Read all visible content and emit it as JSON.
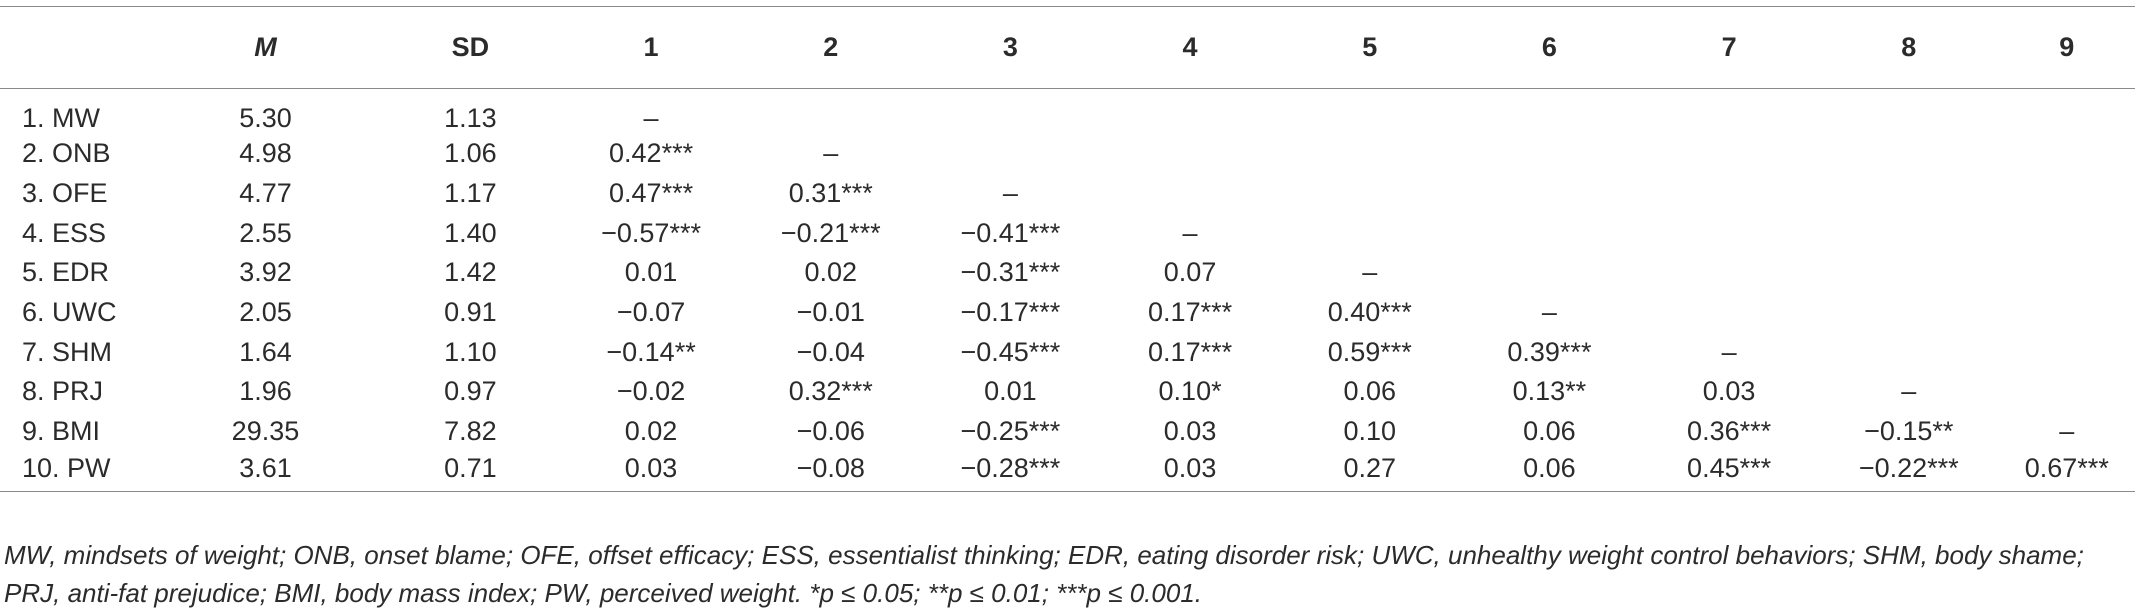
{
  "table": {
    "headers": [
      "",
      "M",
      "SD",
      "1",
      "2",
      "3",
      "4",
      "5",
      "6",
      "7",
      "8",
      "9"
    ],
    "rows": [
      [
        "1. MW",
        "5.30",
        "1.13",
        "–",
        "",
        "",
        "",
        "",
        "",
        "",
        "",
        ""
      ],
      [
        "2. ONB",
        "4.98",
        "1.06",
        "0.42***",
        "–",
        "",
        "",
        "",
        "",
        "",
        "",
        ""
      ],
      [
        "3. OFE",
        "4.77",
        "1.17",
        "0.47***",
        "0.31***",
        "–",
        "",
        "",
        "",
        "",
        "",
        ""
      ],
      [
        "4. ESS",
        "2.55",
        "1.40",
        "−0.57***",
        "−0.21***",
        "−0.41***",
        "–",
        "",
        "",
        "",
        "",
        ""
      ],
      [
        "5. EDR",
        "3.92",
        "1.42",
        "0.01",
        "0.02",
        "−0.31***",
        "0.07",
        "–",
        "",
        "",
        "",
        ""
      ],
      [
        "6. UWC",
        "2.05",
        "0.91",
        "−0.07",
        "−0.01",
        "−0.17***",
        "0.17***",
        "0.40***",
        "–",
        "",
        "",
        ""
      ],
      [
        "7. SHM",
        "1.64",
        "1.10",
        "−0.14**",
        "−0.04",
        "−0.45***",
        "0.17***",
        "0.59***",
        "0.39***",
        "–",
        "",
        ""
      ],
      [
        "8. PRJ",
        "1.96",
        "0.97",
        "−0.02",
        "0.32***",
        "0.01",
        "0.10*",
        "0.06",
        "0.13**",
        "0.03",
        "–",
        ""
      ],
      [
        "9. BMI",
        "29.35",
        "7.82",
        "0.02",
        "−0.06",
        "−0.25***",
        "0.03",
        "0.10",
        "0.06",
        "0.36***",
        "−0.15**",
        "–"
      ],
      [
        "10. PW",
        "3.61",
        "0.71",
        "0.03",
        "−0.08",
        "−0.28***",
        "0.03",
        "0.27",
        "0.06",
        "0.45***",
        "−0.22***",
        "0.67***"
      ]
    ]
  },
  "note": {
    "line1": "MW, mindsets of weight; ONB, onset blame; OFE, offset efficacy; ESS, essentialist thinking; EDR, eating disorder risk; UWC, unhealthy weight control behaviors; SHM, body shame;",
    "line2": "PRJ, anti-fat prejudice; BMI, body mass index; PW, perceived weight. *p ≤ 0.05; **p ≤ 0.01; ***p ≤ 0.001."
  }
}
